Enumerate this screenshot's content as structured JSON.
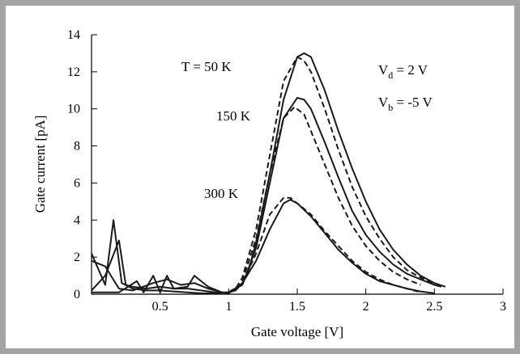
{
  "chart_data": {
    "type": "line",
    "xlabel": "Gate voltage [V]",
    "ylabel": "Gate current [pA]",
    "xlim": [
      0,
      3
    ],
    "ylim": [
      0,
      14
    ],
    "xticks": [
      {
        "value": 0.5,
        "label": "0.5"
      },
      {
        "value": 1,
        "label": "1"
      },
      {
        "value": 1.5,
        "label": "1.5"
      },
      {
        "value": 2,
        "label": "2"
      },
      {
        "value": 2.5,
        "label": "2.5"
      },
      {
        "value": 3,
        "label": "3"
      }
    ],
    "yticks": [
      {
        "value": 0,
        "label": "0"
      },
      {
        "value": 2,
        "label": "2"
      },
      {
        "value": 4,
        "label": "4"
      },
      {
        "value": 6,
        "label": "6"
      },
      {
        "value": 8,
        "label": "8"
      },
      {
        "value": 10,
        "label": "10"
      },
      {
        "value": 12,
        "label": "12"
      },
      {
        "value": 14,
        "label": "14"
      }
    ],
    "grid": false,
    "annotations": {
      "t50": "T = 50 K",
      "t150": "150 K",
      "t300": "300 K",
      "vd_main": "V",
      "vd_sub": "d",
      "vd_value": " = 2 V",
      "vb_main": "V",
      "vb_sub": "b",
      "vb_value": " = -5 V"
    },
    "series": [
      {
        "style": "solid",
        "points": [
          [
            0,
            2.2
          ],
          [
            0.1,
            0.5
          ],
          [
            0.16,
            4.0
          ],
          [
            0.22,
            0.6
          ],
          [
            0.3,
            0.3
          ],
          [
            0.4,
            0.2
          ],
          [
            0.5,
            0.2
          ],
          [
            0.6,
            0.15
          ],
          [
            0.7,
            0.1
          ],
          [
            0.8,
            0.05
          ],
          [
            0.9,
            0.05
          ],
          [
            1.0,
            0.1
          ],
          [
            1.05,
            0.2
          ],
          [
            1.1,
            0.6
          ],
          [
            1.15,
            1.4
          ],
          [
            1.2,
            2.8
          ],
          [
            1.3,
            6.5
          ],
          [
            1.4,
            10.5
          ],
          [
            1.5,
            12.8
          ],
          [
            1.55,
            13.0
          ],
          [
            1.6,
            12.8
          ],
          [
            1.7,
            11.0
          ],
          [
            1.8,
            8.8
          ],
          [
            1.9,
            6.8
          ],
          [
            2.0,
            5.0
          ],
          [
            2.1,
            3.5
          ],
          [
            2.2,
            2.4
          ],
          [
            2.3,
            1.6
          ],
          [
            2.4,
            1.0
          ],
          [
            2.5,
            0.6
          ],
          [
            2.58,
            0.4
          ]
        ]
      },
      {
        "style": "dashed",
        "points": [
          [
            1.0,
            0.1
          ],
          [
            1.05,
            0.3
          ],
          [
            1.1,
            0.9
          ],
          [
            1.2,
            3.5
          ],
          [
            1.3,
            7.5
          ],
          [
            1.4,
            11.5
          ],
          [
            1.5,
            12.8
          ],
          [
            1.55,
            12.6
          ],
          [
            1.6,
            12.0
          ],
          [
            1.7,
            10.0
          ],
          [
            1.8,
            7.8
          ],
          [
            1.9,
            5.8
          ],
          [
            2.0,
            4.2
          ],
          [
            2.1,
            3.0
          ],
          [
            2.2,
            2.0
          ],
          [
            2.3,
            1.3
          ],
          [
            2.4,
            0.9
          ],
          [
            2.5,
            0.55
          ]
        ]
      },
      {
        "style": "solid",
        "points": [
          [
            0,
            0.2
          ],
          [
            0.1,
            1.0
          ],
          [
            0.2,
            2.9
          ],
          [
            0.25,
            0.5
          ],
          [
            0.3,
            0.4
          ],
          [
            0.4,
            0.3
          ],
          [
            0.5,
            0.4
          ],
          [
            0.6,
            0.3
          ],
          [
            0.7,
            0.3
          ],
          [
            0.8,
            0.2
          ],
          [
            0.9,
            0.1
          ],
          [
            1.0,
            0.1
          ],
          [
            1.1,
            0.5
          ],
          [
            1.2,
            2.5
          ],
          [
            1.3,
            6.0
          ],
          [
            1.4,
            9.5
          ],
          [
            1.5,
            10.6
          ],
          [
            1.55,
            10.5
          ],
          [
            1.6,
            10.0
          ],
          [
            1.7,
            8.2
          ],
          [
            1.8,
            6.3
          ],
          [
            1.9,
            4.5
          ],
          [
            2.0,
            3.2
          ],
          [
            2.1,
            2.3
          ],
          [
            2.2,
            1.6
          ],
          [
            2.3,
            1.1
          ],
          [
            2.4,
            0.8
          ],
          [
            2.5,
            0.5
          ],
          [
            2.55,
            0.4
          ]
        ]
      },
      {
        "style": "dashed",
        "points": [
          [
            1.1,
            0.7
          ],
          [
            1.2,
            3.0
          ],
          [
            1.3,
            6.5
          ],
          [
            1.4,
            9.5
          ],
          [
            1.48,
            10.1
          ],
          [
            1.55,
            9.7
          ],
          [
            1.6,
            8.8
          ],
          [
            1.7,
            7.0
          ],
          [
            1.8,
            5.2
          ],
          [
            1.9,
            3.7
          ],
          [
            2.0,
            2.6
          ],
          [
            2.1,
            1.8
          ],
          [
            2.2,
            1.2
          ],
          [
            2.3,
            0.8
          ],
          [
            2.4,
            0.5
          ]
        ]
      },
      {
        "style": "solid",
        "points": [
          [
            0,
            0.1
          ],
          [
            0.2,
            0.1
          ],
          [
            0.33,
            0.7
          ],
          [
            0.38,
            0.1
          ],
          [
            0.45,
            1.0
          ],
          [
            0.5,
            0.1
          ],
          [
            0.55,
            1.0
          ],
          [
            0.6,
            0.3
          ],
          [
            0.7,
            0.4
          ],
          [
            0.75,
            1.0
          ],
          [
            0.85,
            0.4
          ],
          [
            0.95,
            0.1
          ],
          [
            1.0,
            0.05
          ],
          [
            1.1,
            0.6
          ],
          [
            1.2,
            1.8
          ],
          [
            1.3,
            3.5
          ],
          [
            1.4,
            4.9
          ],
          [
            1.45,
            5.1
          ],
          [
            1.5,
            4.9
          ],
          [
            1.6,
            4.2
          ],
          [
            1.7,
            3.3
          ],
          [
            1.8,
            2.4
          ],
          [
            1.9,
            1.7
          ],
          [
            2.0,
            1.1
          ],
          [
            2.1,
            0.7
          ],
          [
            2.2,
            0.5
          ],
          [
            2.3,
            0.3
          ],
          [
            2.4,
            0.15
          ],
          [
            2.5,
            0.05
          ]
        ]
      },
      {
        "style": "dashed",
        "points": [
          [
            1.0,
            0.1
          ],
          [
            1.1,
            0.6
          ],
          [
            1.2,
            2.2
          ],
          [
            1.3,
            4.3
          ],
          [
            1.4,
            5.2
          ],
          [
            1.45,
            5.2
          ],
          [
            1.5,
            4.9
          ],
          [
            1.6,
            4.3
          ],
          [
            1.7,
            3.4
          ],
          [
            1.8,
            2.6
          ],
          [
            1.9,
            1.8
          ],
          [
            2.0,
            1.2
          ],
          [
            2.1,
            0.8
          ],
          [
            2.2,
            0.5
          ],
          [
            2.3,
            0.3
          ],
          [
            2.4,
            0.1
          ]
        ]
      },
      {
        "style": "solid",
        "points": [
          [
            0,
            1.8
          ],
          [
            0.1,
            1.5
          ],
          [
            0.2,
            0.3
          ],
          [
            0.3,
            0.2
          ],
          [
            0.45,
            0.6
          ],
          [
            0.55,
            0.8
          ],
          [
            0.65,
            0.5
          ],
          [
            0.75,
            0.6
          ],
          [
            0.85,
            0.3
          ],
          [
            0.95,
            0.1
          ],
          [
            1.0,
            0.05
          ]
        ]
      }
    ]
  }
}
